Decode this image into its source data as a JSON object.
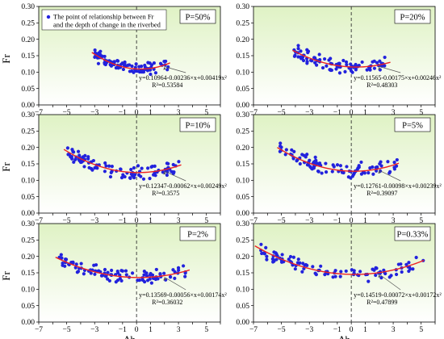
{
  "chart_data": [
    {
      "type": "scatter",
      "panel": "P=50%",
      "p_label": "P=50%",
      "equation": "y=0.10964-0.00236×x+0.00419x²",
      "r2": "R²=0.53584",
      "coef": [
        0.10964,
        -0.00236,
        0.00419
      ],
      "fit_range": [
        -3.2,
        2.4
      ],
      "x_range": [
        -3.1,
        2.3
      ],
      "center": 0.11,
      "spread": 0.028,
      "n_points": 95,
      "seed": 11,
      "xlim": [
        -7,
        6
      ],
      "ylim": [
        0,
        0.3
      ],
      "ylabel": "Fr",
      "xlabel": "",
      "grid": false
    },
    {
      "type": "scatter",
      "panel": "P=20%",
      "p_label": "P=20%",
      "equation": "y=0.11565-0.00175×x+0.00246x²",
      "r2": "R²=0.48303",
      "coef": [
        0.11565,
        -0.00175,
        0.00246
      ],
      "fit_range": [
        -4.2,
        2.8
      ],
      "x_range": [
        -4.1,
        2.7
      ],
      "center": 0.118,
      "spread": 0.03,
      "n_points": 95,
      "seed": 22,
      "xlim": [
        -7,
        6
      ],
      "ylim": [
        0,
        0.3
      ],
      "ylabel": "",
      "xlabel": "",
      "grid": false
    },
    {
      "type": "scatter",
      "panel": "P=10%",
      "p_label": "P=10%",
      "equation": "y=0.12347-0.00062×x+0.00249x²",
      "r2": "R²=0.3575",
      "coef": [
        0.12347,
        -0.00062,
        0.00249
      ],
      "fit_range": [
        -5.2,
        3.2
      ],
      "x_range": [
        -5.0,
        3.1
      ],
      "center": 0.13,
      "spread": 0.035,
      "n_points": 100,
      "seed": 33,
      "xlim": [
        -7,
        6
      ],
      "ylim": [
        0,
        0.3
      ],
      "ylabel": "Fr",
      "xlabel": "",
      "grid": false
    },
    {
      "type": "scatter",
      "panel": "P=5%",
      "p_label": "P=5%",
      "equation": "y=0.12761-0.00098×x+0.00239x²",
      "r2": "R²=0.39097",
      "coef": [
        0.12761,
        -0.00098,
        0.00239
      ],
      "fit_range": [
        -5.3,
        3.4
      ],
      "x_range": [
        -5.2,
        3.3
      ],
      "center": 0.135,
      "spread": 0.035,
      "n_points": 100,
      "seed": 44,
      "xlim": [
        -7,
        6
      ],
      "ylim": [
        0,
        0.3
      ],
      "ylabel": "",
      "xlabel": "",
      "grid": false
    },
    {
      "type": "scatter",
      "panel": "P=2%",
      "p_label": "P=2%",
      "equation": "y=0.13569-0.00056×x+0.00174x²",
      "r2": "R²=0.36032",
      "coef": [
        0.13569,
        -0.00056,
        0.00174
      ],
      "fit_range": [
        -5.8,
        3.8
      ],
      "x_range": [
        -5.6,
        3.5
      ],
      "center": 0.142,
      "spread": 0.03,
      "n_points": 100,
      "seed": 55,
      "xlim": [
        -7,
        6
      ],
      "ylim": [
        0,
        0.3
      ],
      "ylabel": "Fr",
      "xlabel": "Δh",
      "grid": false
    },
    {
      "type": "scatter",
      "panel": "P=0.33%",
      "p_label": "P=0.33%",
      "equation": "y=0.14519-0.00072×x+0.00172x²",
      "r2": "R²=0.47899",
      "coef": [
        0.14519,
        -0.00072,
        0.00172
      ],
      "fit_range": [
        -6.9,
        5.2
      ],
      "x_range": [
        -6.6,
        5.2
      ],
      "center": 0.152,
      "spread": 0.03,
      "n_points": 100,
      "seed": 66,
      "xlim": [
        -7,
        6
      ],
      "ylim": [
        0,
        0.3
      ],
      "ylabel": "",
      "xlabel": "Δh",
      "grid": false
    }
  ],
  "legend": {
    "line1": "The point of relationship between Fr",
    "line2": "and the depth of change in the riverbed"
  },
  "x_ticks": [
    -7,
    -6,
    -5,
    -4,
    -3,
    -2,
    -1,
    0,
    1,
    2,
    3,
    4,
    5,
    6
  ],
  "x_tick_labels": [
    "−7",
    "",
    "−5",
    "",
    "−3",
    "",
    "−1",
    "0",
    "1",
    "",
    "3",
    "",
    "5",
    ""
  ],
  "y_ticks": [
    0,
    0.05,
    0.1,
    0.15,
    0.2,
    0.25,
    0.3
  ],
  "y_tick_labels": [
    "0.00",
    "0.05",
    "0.10",
    "0.15",
    "0.20",
    "0.25",
    "0.30"
  ],
  "colors": {
    "points": "#2222dd",
    "fit_line": "#ee2222",
    "bg_top": "#dff2c4",
    "bg_bottom": "#ffffff",
    "zero_line": "#333333",
    "pointer": "#555555"
  }
}
